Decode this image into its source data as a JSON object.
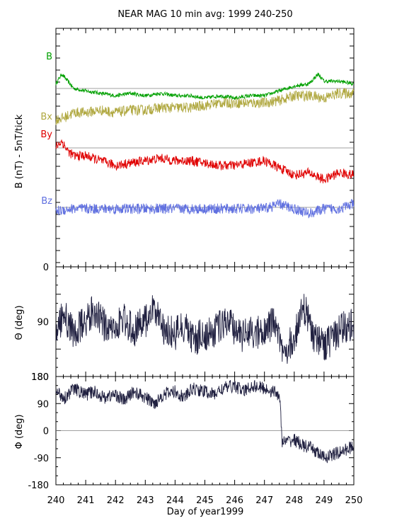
{
  "title": "NEAR MAG 10 min avg: 1999 240-250",
  "colors": {
    "B": "#00a000",
    "Bx": "#b0a840",
    "By": "#e00000",
    "Bz": "#6070e0",
    "theta": "#202040",
    "phi": "#202040",
    "grid": "#808080"
  },
  "chart_data": [
    {
      "type": "line",
      "panel": "field-components",
      "ylabel": "B  (nT) - 5nT/tick",
      "xlim": [
        240,
        250
      ],
      "series": [
        {
          "name": "B",
          "x": [
            240,
            240.2,
            240.4,
            240.6,
            241,
            241.5,
            242,
            242.5,
            243,
            243.5,
            244,
            244.5,
            245,
            245.5,
            246,
            246.5,
            247,
            247.5,
            248,
            248.5,
            248.8,
            249,
            249.5,
            250
          ],
          "values": [
            2,
            6,
            3,
            0,
            -1,
            -2,
            -3,
            -2,
            -3,
            -2,
            -3,
            -3,
            -4,
            -3,
            -4,
            -3,
            -3,
            -1,
            1,
            2,
            6,
            3,
            3,
            2
          ]
        },
        {
          "name": "Bx",
          "x": [
            240,
            240.3,
            240.6,
            241,
            241.5,
            242,
            242.5,
            243,
            243.5,
            244,
            244.5,
            245,
            245.5,
            246,
            246.5,
            247,
            247.5,
            248,
            248.5,
            249,
            249.5,
            250
          ],
          "values": [
            -13,
            -12,
            -10,
            -10,
            -9,
            -10,
            -9,
            -9,
            -8,
            -8,
            -8,
            -7,
            -6,
            -6,
            -6,
            -6,
            -5,
            -3,
            -3,
            -4,
            -2,
            -2
          ]
        },
        {
          "name": "By",
          "x": [
            240,
            240.2,
            240.4,
            240.6,
            241,
            241.5,
            242,
            242.5,
            243,
            243.5,
            244,
            244.5,
            245,
            245.5,
            246,
            246.5,
            247,
            247.5,
            248,
            248.5,
            249,
            249.5,
            250
          ],
          "values": [
            -24,
            -22,
            -26,
            -28,
            -28,
            -30,
            -32,
            -31,
            -30,
            -29,
            -30,
            -30,
            -31,
            -32,
            -32,
            -31,
            -30,
            -33,
            -36,
            -35,
            -38,
            -35,
            -36
          ]
        },
        {
          "name": "Bz",
          "x": [
            240,
            240.5,
            241,
            241.5,
            242,
            242.5,
            243,
            243.5,
            244,
            244.5,
            245,
            245.5,
            246,
            246.5,
            247,
            247.5,
            248,
            248.5,
            249,
            249.5,
            250
          ],
          "values": [
            -51,
            -50,
            -50,
            -50,
            -50,
            -50,
            -50,
            -50,
            -50,
            -50,
            -50,
            -50,
            -50,
            -50,
            -50,
            -48,
            -50,
            -52,
            -50,
            -50,
            -48
          ]
        }
      ],
      "series_labels": [
        "B",
        "Bx",
        "By",
        "Bz"
      ]
    },
    {
      "type": "line",
      "panel": "theta",
      "ylabel": "Θ (deg)",
      "ylim": [
        0,
        180
      ],
      "yticks": [
        "0",
        "90",
        "180"
      ],
      "xlim": [
        240,
        250
      ],
      "series": [
        {
          "x": [
            240,
            240.3,
            240.6,
            241,
            241.3,
            241.6,
            242,
            242.3,
            242.6,
            243,
            243.3,
            243.6,
            244,
            244.3,
            244.6,
            245,
            245.3,
            245.6,
            246,
            246.3,
            246.6,
            247,
            247.3,
            247.6,
            248,
            248.3,
            248.6,
            249,
            249.3,
            249.6,
            250
          ],
          "values": [
            100,
            80,
            110,
            90,
            70,
            95,
            100,
            85,
            105,
            90,
            60,
            100,
            110,
            95,
            120,
            110,
            105,
            95,
            100,
            115,
            105,
            110,
            90,
            140,
            120,
            60,
            110,
            130,
            115,
            100,
            95
          ]
        }
      ]
    },
    {
      "type": "line",
      "panel": "phi",
      "ylabel": "Φ (deg)",
      "ylim": [
        -180,
        180
      ],
      "yticks": [
        "180",
        "90",
        "0",
        "-90",
        "-180"
      ],
      "xlim": [
        240,
        250
      ],
      "xticks": [
        "240",
        "241",
        "242",
        "243",
        "244",
        "245",
        "246",
        "247",
        "248",
        "249",
        "250"
      ],
      "xlabel": "Day of year1999",
      "series": [
        {
          "x": [
            240,
            240.3,
            240.6,
            241,
            241.3,
            241.6,
            242,
            242.3,
            242.6,
            243,
            243.3,
            243.6,
            244,
            244.3,
            244.6,
            245,
            245.3,
            245.6,
            246,
            246.3,
            246.6,
            247,
            247.3,
            247.5,
            247.6,
            248,
            248.3,
            248.6,
            249,
            249.3,
            249.6,
            250
          ],
          "values": [
            130,
            110,
            140,
            120,
            130,
            110,
            120,
            100,
            130,
            110,
            90,
            120,
            130,
            110,
            140,
            130,
            120,
            140,
            150,
            130,
            150,
            140,
            130,
            120,
            -40,
            -30,
            -50,
            -60,
            -90,
            -80,
            -70,
            -50
          ]
        }
      ]
    }
  ]
}
